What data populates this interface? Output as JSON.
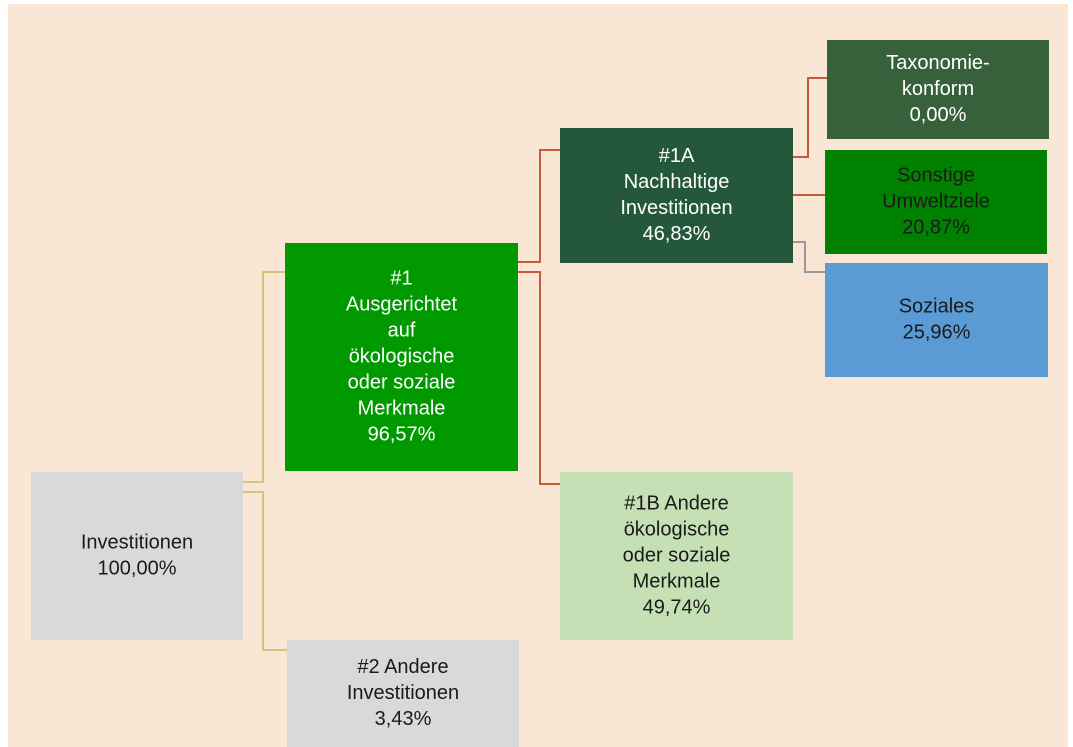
{
  "nodes": [
    {
      "id": "inv",
      "lines": [
        "Investitionen",
        "100,00%"
      ]
    },
    {
      "id": "n1",
      "lines": [
        "#1",
        "Ausgerichtet",
        "auf",
        "ökologische",
        "oder soziale",
        "Merkmale",
        "96,57%"
      ]
    },
    {
      "id": "n2",
      "lines": [
        "#2 Andere",
        "Investitionen",
        "3,43%"
      ]
    },
    {
      "id": "n1a",
      "lines": [
        "#1A",
        "Nachhaltige",
        "Investitionen",
        "46,83%"
      ]
    },
    {
      "id": "n1b",
      "lines": [
        "#1B Andere",
        "ökologische",
        "oder soziale",
        "Merkmale",
        "49,74%"
      ]
    },
    {
      "id": "tax",
      "lines": [
        "Taxonomie-",
        "konform",
        "0,00%"
      ]
    },
    {
      "id": "sonst",
      "lines": [
        "Sonstige",
        "Umweltziele",
        "20,87%"
      ]
    },
    {
      "id": "soz",
      "lines": [
        "Soziales",
        "25,96%"
      ]
    }
  ]
}
